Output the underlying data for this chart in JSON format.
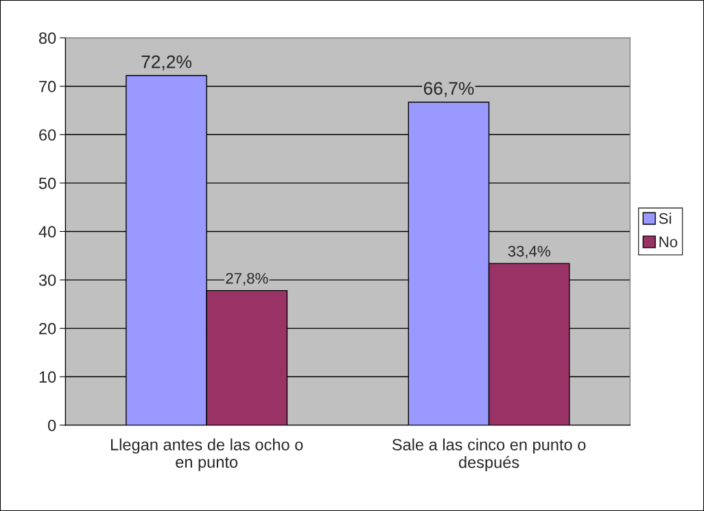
{
  "chart_data": {
    "type": "bar",
    "categories": [
      "Llegan antes de las ocho o en punto",
      "Sale a las cinco en punto o después"
    ],
    "series": [
      {
        "name": "Si",
        "color": "#9999ff",
        "values": [
          72.2,
          66.7
        ],
        "value_labels": [
          "72,2%",
          "66,7%"
        ]
      },
      {
        "name": "No",
        "color": "#993366",
        "values": [
          27.8,
          33.4
        ],
        "value_labels": [
          "27,8%",
          "33,4%"
        ]
      }
    ],
    "ylim": [
      0,
      80
    ],
    "yticks": [
      0,
      10,
      20,
      30,
      40,
      50,
      60,
      70,
      80
    ],
    "grid": "y",
    "legend": "right"
  }
}
